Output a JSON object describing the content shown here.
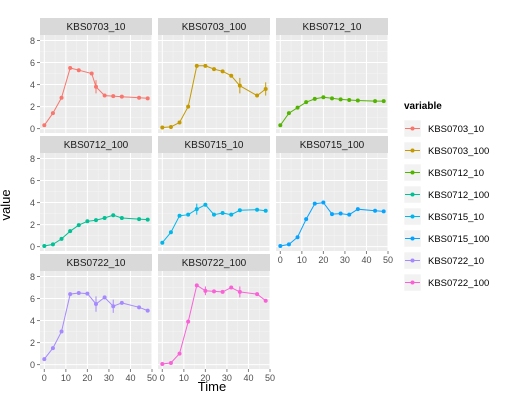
{
  "chart_data": {
    "type": "line",
    "facet": "wrap",
    "xlabel": "Time",
    "ylabel": "value",
    "x_ticks": [
      0,
      10,
      20,
      30,
      40,
      50
    ],
    "y_ticks": [
      0,
      2,
      4,
      6,
      8
    ],
    "xlim": [
      -2,
      50
    ],
    "ylim": [
      -0.4,
      8.5
    ],
    "grid": true,
    "legend": {
      "title": "variable",
      "position": "right"
    },
    "series": [
      {
        "name": "KBS0703_10",
        "color": "#F8766D",
        "x": [
          0,
          4,
          8,
          12,
          16,
          22,
          24,
          28,
          32,
          36,
          44,
          48
        ],
        "y": [
          0.3,
          1.4,
          2.8,
          5.5,
          5.3,
          5.0,
          3.8,
          3.0,
          2.95,
          2.9,
          2.8,
          2.75
        ],
        "err": [
          0,
          0,
          0,
          0,
          0,
          0,
          0.6,
          0,
          0,
          0,
          0,
          0
        ]
      },
      {
        "name": "KBS0703_100",
        "color": "#C49A00",
        "x": [
          0,
          4,
          8,
          12,
          16,
          20,
          24,
          28,
          32,
          36,
          44,
          48
        ],
        "y": [
          0.1,
          0.15,
          0.55,
          2.0,
          5.7,
          5.7,
          5.4,
          5.2,
          4.8,
          3.9,
          3.0,
          3.6
        ],
        "err": [
          0,
          0,
          0,
          0,
          0,
          0,
          0,
          0,
          0,
          0.7,
          0,
          0.6
        ]
      },
      {
        "name": "KBS0712_10",
        "color": "#53B400",
        "x": [
          0,
          4,
          8,
          12,
          16,
          20,
          24,
          28,
          32,
          36,
          44,
          48
        ],
        "y": [
          0.3,
          1.4,
          1.9,
          2.4,
          2.7,
          2.85,
          2.75,
          2.65,
          2.6,
          2.55,
          2.5,
          2.5
        ],
        "err": [
          0,
          0,
          0,
          0,
          0,
          0,
          0,
          0,
          0,
          0,
          0,
          0
        ]
      },
      {
        "name": "KBS0712_100",
        "color": "#00C094",
        "x": [
          0,
          4,
          8,
          12,
          16,
          20,
          24,
          28,
          32,
          36,
          44,
          48
        ],
        "y": [
          0.05,
          0.2,
          0.7,
          1.4,
          1.95,
          2.3,
          2.4,
          2.6,
          2.85,
          2.6,
          2.5,
          2.45
        ],
        "err": [
          0,
          0,
          0,
          0,
          0,
          0,
          0,
          0,
          0,
          0,
          0,
          0
        ]
      },
      {
        "name": "KBS0715_10",
        "color": "#00B6EB",
        "x": [
          0,
          4,
          8,
          12,
          16,
          20,
          24,
          28,
          32,
          36,
          44,
          48
        ],
        "y": [
          0.35,
          1.3,
          2.8,
          2.9,
          3.4,
          3.8,
          2.9,
          3.05,
          2.9,
          3.3,
          3.35,
          3.25
        ],
        "err": [
          0,
          0,
          0,
          0,
          0.5,
          0,
          0,
          0,
          0,
          0,
          0,
          0
        ]
      },
      {
        "name": "KBS0715_100",
        "color": "#06A4FF",
        "x": [
          0,
          4,
          8,
          12,
          16,
          20,
          24,
          28,
          32,
          36,
          44,
          48
        ],
        "y": [
          0.05,
          0.2,
          0.85,
          2.5,
          3.9,
          4.0,
          2.95,
          3.0,
          2.9,
          3.4,
          3.25,
          3.2
        ],
        "err": [
          0,
          0,
          0,
          0,
          0,
          0,
          0,
          0,
          0,
          0,
          0,
          0
        ]
      },
      {
        "name": "KBS0722_10",
        "color": "#A58AFF",
        "x": [
          0,
          4,
          8,
          12,
          16,
          20,
          24,
          28,
          32,
          36,
          44,
          48
        ],
        "y": [
          0.5,
          1.5,
          3.0,
          6.4,
          6.5,
          6.45,
          5.5,
          6.1,
          5.3,
          5.6,
          5.2,
          4.9
        ],
        "err": [
          0,
          0,
          0,
          0,
          0,
          0,
          0.7,
          0,
          0.6,
          0,
          0,
          0
        ]
      },
      {
        "name": "KBS0722_100",
        "color": "#FB61D7",
        "x": [
          0,
          4,
          8,
          12,
          16,
          20,
          24,
          28,
          32,
          36,
          44,
          48
        ],
        "y": [
          0.05,
          0.15,
          1.0,
          3.9,
          7.2,
          6.7,
          6.65,
          6.6,
          7.0,
          6.6,
          6.4,
          5.8
        ],
        "err": [
          0,
          0,
          0,
          0,
          0,
          0.4,
          0,
          0,
          0,
          0.5,
          0,
          0
        ]
      }
    ]
  }
}
